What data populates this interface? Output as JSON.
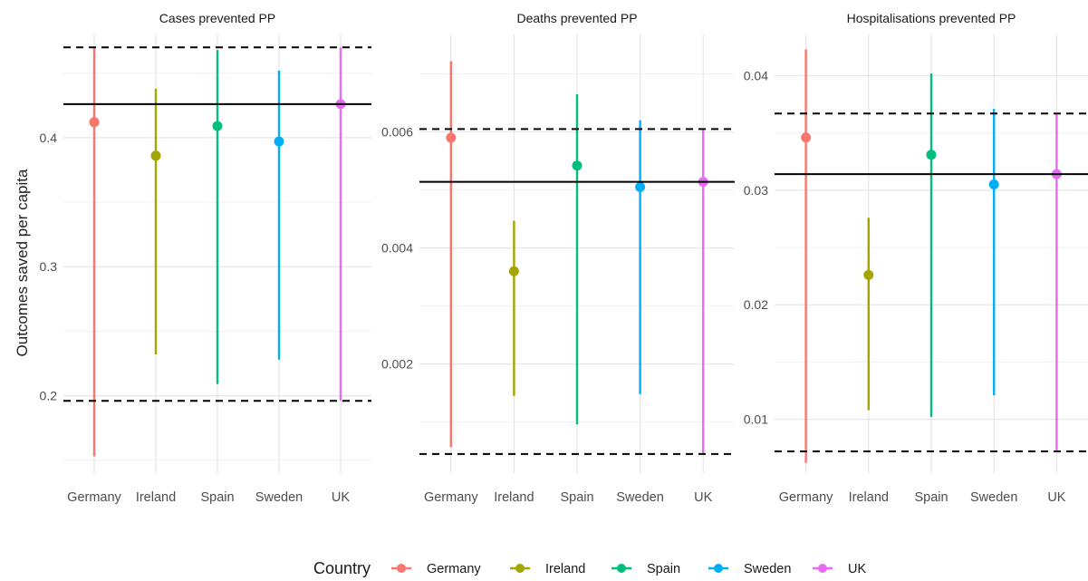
{
  "chart_data": {
    "type": "errorbar",
    "ylabel": "Outcomes saved per capita",
    "categories": [
      "Germany",
      "Ireland",
      "Spain",
      "Sweden",
      "UK"
    ],
    "legend": {
      "title": "Country",
      "position": "bottom",
      "entries": [
        {
          "label": "Germany",
          "color": "#F8766D"
        },
        {
          "label": "Ireland",
          "color": "#A3A500"
        },
        {
          "label": "Spain",
          "color": "#00BF7D"
        },
        {
          "label": "Sweden",
          "color": "#00B0F6"
        },
        {
          "label": "UK",
          "color": "#E76BF3"
        }
      ]
    },
    "grid": true,
    "panels": [
      {
        "title": "Cases prevented PP",
        "ylim": [
          0.14,
          0.48
        ],
        "yticks": [
          0.2,
          0.3,
          0.4
        ],
        "ytick_labels": [
          "0.2",
          "0.3",
          "0.4"
        ],
        "hline": 0.426,
        "dashed_lines": [
          0.196,
          0.47
        ],
        "points": [
          {
            "country": "Germany",
            "value": 0.412,
            "low": 0.153,
            "high": 0.47
          },
          {
            "country": "Ireland",
            "value": 0.386,
            "low": 0.232,
            "high": 0.438
          },
          {
            "country": "Spain",
            "value": 0.409,
            "low": 0.209,
            "high": 0.468
          },
          {
            "country": "Sweden",
            "value": 0.397,
            "low": 0.228,
            "high": 0.452
          },
          {
            "country": "UK",
            "value": 0.426,
            "low": 0.196,
            "high": 0.47
          }
        ]
      },
      {
        "title": "Deaths prevented PP",
        "ylim": [
          0.00012,
          0.00768
        ],
        "yticks": [
          0.002,
          0.004,
          0.006
        ],
        "ytick_labels": [
          "0.002",
          "0.004",
          "0.006"
        ],
        "hline": 0.00514,
        "dashed_lines": [
          0.00045,
          0.00605
        ],
        "points": [
          {
            "country": "Germany",
            "value": 0.0059,
            "low": 0.00057,
            "high": 0.00722
          },
          {
            "country": "Ireland",
            "value": 0.0036,
            "low": 0.00145,
            "high": 0.00447
          },
          {
            "country": "Spain",
            "value": 0.00542,
            "low": 0.00096,
            "high": 0.00665
          },
          {
            "country": "Sweden",
            "value": 0.00505,
            "low": 0.00148,
            "high": 0.0062
          },
          {
            "country": "UK",
            "value": 0.00514,
            "low": 0.00045,
            "high": 0.00605
          }
        ]
      },
      {
        "title": "Hospitalisations prevented PP",
        "ylim": [
          0.0053,
          0.0436
        ],
        "yticks": [
          0.01,
          0.02,
          0.03,
          0.04
        ],
        "ytick_labels": [
          "0.01",
          "0.02",
          "0.03",
          "0.04"
        ],
        "hline": 0.0314,
        "dashed_lines": [
          0.0072,
          0.0367
        ],
        "points": [
          {
            "country": "Germany",
            "value": 0.0346,
            "low": 0.0062,
            "high": 0.0423
          },
          {
            "country": "Ireland",
            "value": 0.0226,
            "low": 0.0108,
            "high": 0.0276
          },
          {
            "country": "Spain",
            "value": 0.0331,
            "low": 0.0102,
            "high": 0.0402
          },
          {
            "country": "Sweden",
            "value": 0.0305,
            "low": 0.0121,
            "high": 0.0371
          },
          {
            "country": "UK",
            "value": 0.0314,
            "low": 0.0072,
            "high": 0.0367
          }
        ]
      }
    ]
  }
}
